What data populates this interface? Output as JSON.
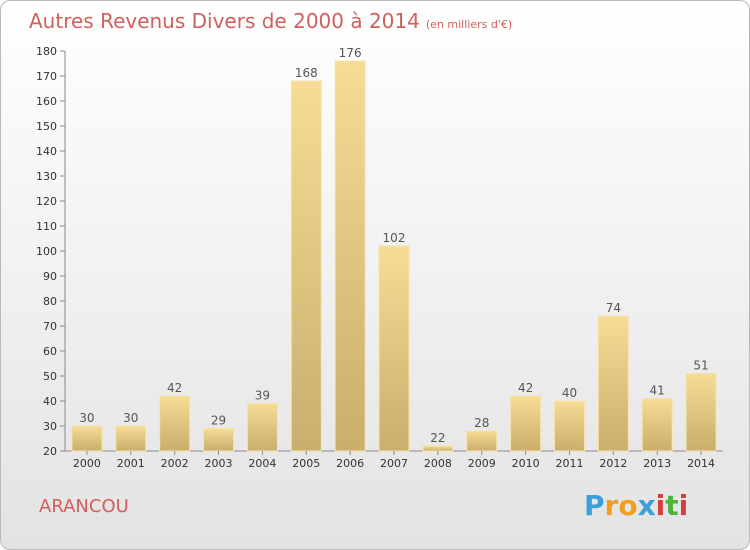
{
  "title": "Autres Revenus Divers de 2000 à 2014",
  "subtitle": "(en milliers d'€)",
  "commune": "ARANCOU",
  "logo": {
    "letters": [
      "P",
      "r",
      "o",
      "x",
      "i",
      "t",
      "i"
    ],
    "colors": [
      "#3aa0d8",
      "#f0a020",
      "#f0a020",
      "#3aa0d8",
      "#d04040",
      "#50b040",
      "#d04040"
    ]
  },
  "colors": {
    "title": "#d0605b",
    "bar_light": "#f6dc95",
    "bar_dark": "#c9ae6c",
    "grid": "#8a8a8a"
  },
  "chart_data": {
    "type": "bar",
    "categories": [
      "2000",
      "2001",
      "2002",
      "2003",
      "2004",
      "2005",
      "2006",
      "2007",
      "2008",
      "2009",
      "2010",
      "2011",
      "2012",
      "2013",
      "2014"
    ],
    "values": [
      30,
      30,
      42,
      29,
      39,
      168,
      176,
      102,
      22,
      28,
      42,
      40,
      74,
      41,
      51
    ],
    "ylim": [
      20,
      180
    ],
    "yticks": [
      20,
      30,
      40,
      50,
      60,
      70,
      80,
      90,
      100,
      110,
      120,
      130,
      140,
      150,
      160,
      170,
      180
    ],
    "grid": false,
    "data_labels": true
  }
}
